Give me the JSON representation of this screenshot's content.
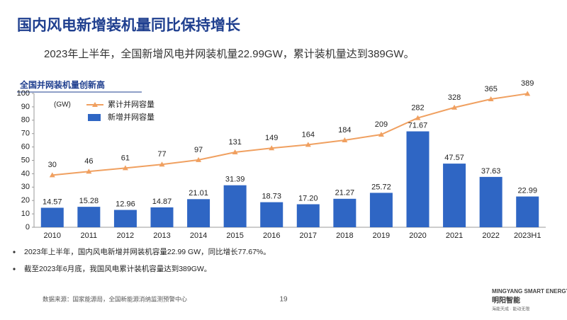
{
  "title": "国内风电新增装机量同比保持增长",
  "subtitle": "2023年上半年，全国新增风电并网装机量22.99GW，累计装机量达到389GW。",
  "chart_data": {
    "type": "bar",
    "title": "全国并网装机量创新高",
    "y_label": "(GW)",
    "categories": [
      "2010",
      "2011",
      "2012",
      "2013",
      "2014",
      "2015",
      "2016",
      "2017",
      "2018",
      "2019",
      "2020",
      "2021",
      "2022",
      "2023H1"
    ],
    "series": [
      {
        "name": "累计并网容量",
        "type": "line",
        "axis": "y2",
        "color": "#f0a060",
        "values": [
          30,
          46,
          61,
          77,
          97,
          131,
          149,
          164,
          184,
          209,
          282,
          328,
          365,
          389
        ]
      },
      {
        "name": "新增并网容量",
        "type": "bar",
        "color": "#2f66c4",
        "values": [
          14.57,
          15.28,
          12.96,
          14.87,
          21.01,
          31.39,
          18.73,
          17.2,
          21.27,
          25.72,
          71.67,
          47.57,
          37.63,
          22.99
        ],
        "value_labels": [
          "14.57",
          "15.28",
          "12.96",
          "14.87",
          "21.01",
          "31.39",
          "18.73",
          "17.20",
          "21.27",
          "25.72",
          "71.67",
          "47.57",
          "37.63",
          "22.99"
        ]
      }
    ],
    "ylim": [
      0,
      100
    ],
    "yticks": [
      0,
      10,
      20,
      30,
      40,
      50,
      60,
      70,
      80,
      90,
      100
    ],
    "y2lim": [
      -200,
      390
    ]
  },
  "bullets": [
    "2023年上半年，国内风电新增并网装机容量22.99 GW，同比增长77.67%。",
    "截至2023年6月底，我国风电累计装机容量达到389GW。"
  ],
  "footer": {
    "source": "数据来源：国家能源局，全国新能源消纳监测预警中心",
    "page": "19",
    "brand": "MINGYANG SMART ENERGY",
    "brand_cn": "明阳智能",
    "slogan": "海能天成 · 能动无限"
  }
}
